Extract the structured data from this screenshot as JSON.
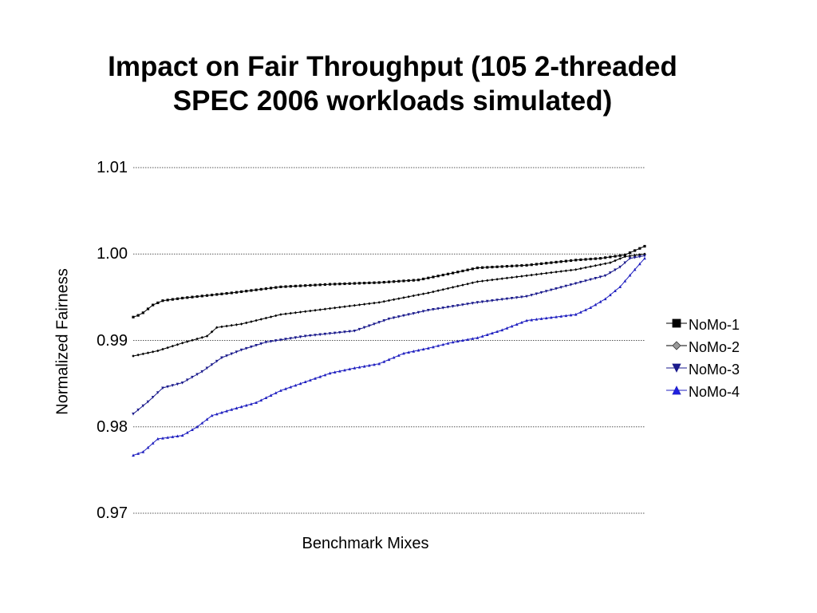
{
  "chart_data": {
    "type": "line",
    "title": "Impact on Fair Throughput (105 2-threaded\nSPEC 2006 workloads simulated)",
    "xlabel": "Benchmark Mixes",
    "ylabel": "Normalized Fairness",
    "ylim": [
      0.97,
      1.01
    ],
    "yticks": [
      "1.01",
      "1.00",
      "0.99",
      "0.98",
      "0.97"
    ],
    "ytick_values": [
      1.01,
      1.0,
      0.99,
      0.98,
      0.97
    ],
    "grid": "horizontal dotted",
    "legend_position": "right",
    "n_points": 105,
    "series": [
      {
        "name": "NoMo-1",
        "color": "#000000",
        "marker": "square",
        "keypoints": [
          [
            0,
            0.9927
          ],
          [
            1,
            0.9929
          ],
          [
            2,
            0.9932
          ],
          [
            4,
            0.9941
          ],
          [
            6,
            0.9946
          ],
          [
            10,
            0.9949
          ],
          [
            20,
            0.9955
          ],
          [
            30,
            0.9962
          ],
          [
            40,
            0.9965
          ],
          [
            50,
            0.9967
          ],
          [
            58,
            0.997
          ],
          [
            65,
            0.9978
          ],
          [
            70,
            0.9984
          ],
          [
            80,
            0.9987
          ],
          [
            90,
            0.9993
          ],
          [
            95,
            0.9995
          ],
          [
            100,
            0.9999
          ],
          [
            104,
            1.0009
          ]
        ]
      },
      {
        "name": "NoMo-2",
        "color": "#000000",
        "marker": "diamond",
        "keypoints": [
          [
            0,
            0.9882
          ],
          [
            5,
            0.9888
          ],
          [
            10,
            0.9897
          ],
          [
            15,
            0.9905
          ],
          [
            17,
            0.9915
          ],
          [
            22,
            0.9919
          ],
          [
            30,
            0.993
          ],
          [
            40,
            0.9937
          ],
          [
            50,
            0.9944
          ],
          [
            60,
            0.9955
          ],
          [
            70,
            0.9968
          ],
          [
            80,
            0.9975
          ],
          [
            90,
            0.9982
          ],
          [
            97,
            0.999
          ],
          [
            100,
            0.9997
          ],
          [
            104,
            1.0
          ]
        ]
      },
      {
        "name": "NoMo-3",
        "color": "#1a1a8c",
        "marker": "triangle-down",
        "keypoints": [
          [
            0,
            0.9815
          ],
          [
            3,
            0.9829
          ],
          [
            6,
            0.9845
          ],
          [
            10,
            0.9851
          ],
          [
            14,
            0.9864
          ],
          [
            18,
            0.988
          ],
          [
            22,
            0.9889
          ],
          [
            27,
            0.9898
          ],
          [
            35,
            0.9905
          ],
          [
            45,
            0.9911
          ],
          [
            52,
            0.9925
          ],
          [
            60,
            0.9935
          ],
          [
            70,
            0.9944
          ],
          [
            80,
            0.9951
          ],
          [
            90,
            0.9966
          ],
          [
            96,
            0.9975
          ],
          [
            99,
            0.9985
          ],
          [
            101,
            0.9995
          ],
          [
            104,
            0.9998
          ]
        ]
      },
      {
        "name": "NoMo-4",
        "color": "#2020c0",
        "marker": "triangle-up",
        "keypoints": [
          [
            0,
            0.9767
          ],
          [
            2,
            0.9771
          ],
          [
            5,
            0.9786
          ],
          [
            10,
            0.979
          ],
          [
            13,
            0.98
          ],
          [
            16,
            0.9813
          ],
          [
            20,
            0.982
          ],
          [
            25,
            0.9828
          ],
          [
            30,
            0.9842
          ],
          [
            35,
            0.9852
          ],
          [
            40,
            0.9862
          ],
          [
            45,
            0.9868
          ],
          [
            50,
            0.9873
          ],
          [
            55,
            0.9885
          ],
          [
            60,
            0.9891
          ],
          [
            65,
            0.9898
          ],
          [
            70,
            0.9903
          ],
          [
            75,
            0.9912
          ],
          [
            80,
            0.9923
          ],
          [
            90,
            0.993
          ],
          [
            93,
            0.9938
          ],
          [
            96,
            0.9948
          ],
          [
            99,
            0.9962
          ],
          [
            102,
            0.9982
          ],
          [
            104,
            0.9995
          ]
        ]
      }
    ]
  }
}
